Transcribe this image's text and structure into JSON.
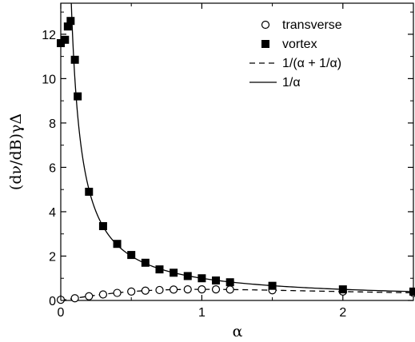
{
  "chart_data": {
    "type": "scatter",
    "title": "",
    "xlabel": "α",
    "ylabel": "(dν/dB)γΔ",
    "xlim": [
      0,
      2.5
    ],
    "ylim": [
      0,
      13.4
    ],
    "x_ticks": [
      0,
      1,
      2
    ],
    "x_tick_labels": [
      "0",
      "1",
      "2"
    ],
    "y_ticks": [
      0,
      2,
      4,
      6,
      8,
      10,
      12
    ],
    "y_tick_labels": [
      "0",
      "2",
      "4",
      "6",
      "8",
      "10",
      "12"
    ],
    "grid": false,
    "legend_position": "top-right",
    "series": [
      {
        "name": "transverse",
        "kind": "open-circle",
        "color": "#000000",
        "x": [
          0.0,
          0.1,
          0.2,
          0.3,
          0.4,
          0.5,
          0.6,
          0.7,
          0.8,
          0.9,
          1.0,
          1.1,
          1.2,
          1.5,
          2.0,
          2.5
        ],
        "y": [
          0.03,
          0.1,
          0.19,
          0.27,
          0.34,
          0.4,
          0.44,
          0.47,
          0.49,
          0.5,
          0.5,
          0.5,
          0.49,
          0.46,
          0.4,
          0.34
        ]
      },
      {
        "name": "vortex",
        "kind": "filled-square",
        "color": "#000000",
        "x": [
          0.0,
          0.03,
          0.05,
          0.07,
          0.1,
          0.12,
          0.2,
          0.3,
          0.4,
          0.5,
          0.6,
          0.7,
          0.8,
          0.9,
          1.0,
          1.1,
          1.2,
          1.5,
          2.0,
          2.5
        ],
        "y": [
          11.6,
          11.75,
          12.35,
          12.6,
          10.85,
          9.2,
          4.9,
          3.35,
          2.55,
          2.05,
          1.7,
          1.4,
          1.25,
          1.1,
          1.0,
          0.9,
          0.82,
          0.66,
          0.5,
          0.4
        ]
      },
      {
        "name": "1/(α + 1/α)",
        "kind": "dashed-line",
        "color": "#000000",
        "function": "x/(1+x^2)"
      },
      {
        "name": "1/α",
        "kind": "solid-line",
        "color": "#000000",
        "function": "1/x"
      }
    ]
  }
}
